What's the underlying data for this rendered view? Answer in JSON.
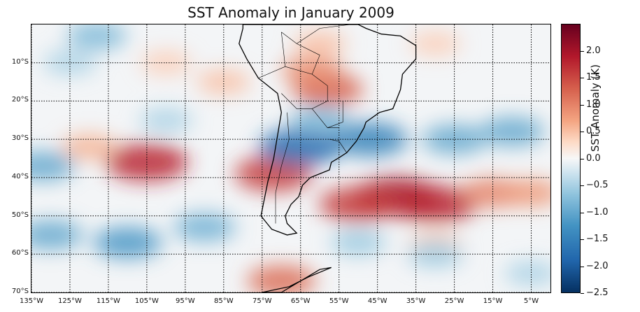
{
  "title": "SST Anomaly in January 2009",
  "map": {
    "lon_range": [
      -135,
      0
    ],
    "lat_range": [
      -70,
      0
    ],
    "lat_labels": [
      "10°S",
      "20°S",
      "30°S",
      "40°S",
      "50°S",
      "60°S",
      "70°S"
    ],
    "lat_values": [
      -10,
      -20,
      -30,
      -40,
      -50,
      -60,
      -70
    ],
    "lon_labels": [
      "135°W",
      "125°W",
      "115°W",
      "105°W",
      "95°W",
      "85°W",
      "75°W",
      "65°W",
      "55°W",
      "45°W",
      "35°W",
      "25°W",
      "15°W",
      "5°W"
    ],
    "lon_values": [
      -135,
      -125,
      -115,
      -105,
      -95,
      -85,
      -75,
      -65,
      -55,
      -45,
      -35,
      -25,
      -15,
      -5
    ],
    "gridline_style": "dotted",
    "coastline_color": "#000000",
    "anomaly_features": [
      {
        "lon": -105,
        "lat": -36,
        "value": 1.8
      },
      {
        "lon": -120,
        "lat": -32,
        "value": 0.6
      },
      {
        "lon": -72,
        "lat": -39,
        "value": 1.6
      },
      {
        "lon": -58,
        "lat": -17,
        "value": 1.3
      },
      {
        "lon": -62,
        "lat": -12,
        "value": 0.9
      },
      {
        "lon": -40,
        "lat": -45,
        "value": 2.0
      },
      {
        "lon": -30,
        "lat": -47,
        "value": 1.8
      },
      {
        "lon": -50,
        "lat": -47,
        "value": 1.6
      },
      {
        "lon": -15,
        "lat": -44,
        "value": 1.0
      },
      {
        "lon": -5,
        "lat": -44,
        "value": 0.8
      },
      {
        "lon": -60,
        "lat": -5,
        "value": 0.5
      },
      {
        "lon": -30,
        "lat": -5,
        "value": 0.4
      },
      {
        "lon": -100,
        "lat": -10,
        "value": 0.4
      },
      {
        "lon": -85,
        "lat": -15,
        "value": 0.5
      },
      {
        "lon": -70,
        "lat": -67,
        "value": 1.2
      },
      {
        "lon": -30,
        "lat": -57,
        "value": 0.4
      },
      {
        "lon": -132,
        "lat": -37,
        "value": -1.0
      },
      {
        "lon": -130,
        "lat": -55,
        "value": -1.0
      },
      {
        "lon": -110,
        "lat": -57,
        "value": -1.2
      },
      {
        "lon": -90,
        "lat": -53,
        "value": -0.9
      },
      {
        "lon": -118,
        "lat": -3,
        "value": -0.8
      },
      {
        "lon": -125,
        "lat": -10,
        "value": -0.5
      },
      {
        "lon": -100,
        "lat": -25,
        "value": -0.5
      },
      {
        "lon": -65,
        "lat": -32,
        "value": -1.8
      },
      {
        "lon": -47,
        "lat": -30,
        "value": -1.5
      },
      {
        "lon": -60,
        "lat": -25,
        "value": -0.8
      },
      {
        "lon": -25,
        "lat": -30,
        "value": -1.0
      },
      {
        "lon": -10,
        "lat": -28,
        "value": -1.0
      },
      {
        "lon": -30,
        "lat": -60,
        "value": -0.6
      },
      {
        "lon": -50,
        "lat": -57,
        "value": -0.6
      },
      {
        "lon": -5,
        "lat": -65,
        "value": -0.5
      }
    ]
  },
  "colorbar": {
    "label": "SST Anomaly (K)",
    "vmin": -2.5,
    "vmax": 2.5,
    "ticks": [
      "2.0",
      "1.5",
      "1.0",
      "0.5",
      "0.0",
      "−0.5",
      "−1.0",
      "−1.5",
      "−2.0",
      "−2.5"
    ],
    "tick_values": [
      2.0,
      1.5,
      1.0,
      0.5,
      0.0,
      -0.5,
      -1.0,
      -1.5,
      -2.0,
      -2.5
    ],
    "colormap": "RdBu_r"
  }
}
